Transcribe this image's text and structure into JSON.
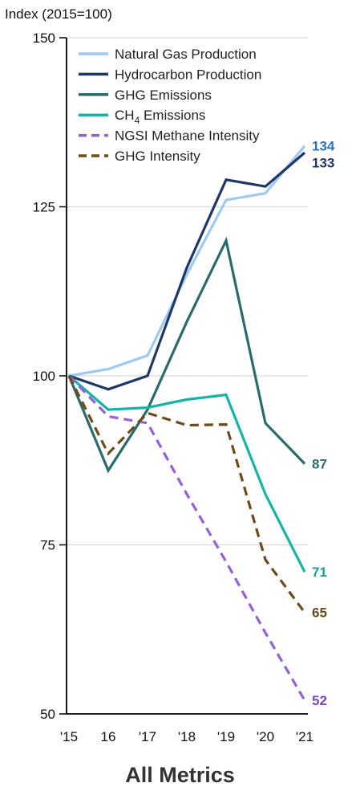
{
  "chart_data": {
    "type": "line",
    "title": "All Metrics",
    "ylabel": "Index (2015=100)",
    "xlabel": "",
    "x": [
      "'15",
      "16",
      "'17",
      "'18",
      "'19",
      "'20",
      "'21"
    ],
    "ylim": [
      50,
      150
    ],
    "yticks": [
      50,
      75,
      100,
      125,
      150
    ],
    "grid": true,
    "legend": "top-left",
    "series": [
      {
        "name": "Natural Gas Production",
        "color": "#9DC9F2",
        "dash": "solid",
        "values": [
          100,
          101,
          103,
          115,
          126,
          127,
          134
        ],
        "end_label": "134",
        "end_label_color": "#2B72C6"
      },
      {
        "name": "Hydrocarbon Production",
        "color": "#1F3766",
        "dash": "solid",
        "values": [
          100,
          98,
          100,
          116,
          129,
          128,
          133
        ],
        "end_label": "133",
        "end_label_color": "#1F3766"
      },
      {
        "name": "GHG Emissions",
        "color": "#2A6B6B",
        "dash": "solid",
        "values": [
          100,
          86,
          95,
          108,
          120,
          93,
          87
        ],
        "end_label": "87",
        "end_label_color": "#2A6B6B"
      },
      {
        "name": "CH₄ Emissions",
        "color": "#16B3A6",
        "dash": "solid",
        "values": [
          100,
          95,
          95.3,
          96.5,
          97.2,
          82.5,
          71
        ],
        "end_label": "71",
        "end_label_color": "#16A09A"
      },
      {
        "name": "NGSI Methane Intensity",
        "color": "#9461D8",
        "dash": "dashed",
        "values": [
          100,
          94,
          93,
          82.5,
          72.5,
          62,
          52
        ],
        "end_label": "52",
        "end_label_color": "#7A45C8"
      },
      {
        "name": "GHG Intensity",
        "color": "#6B4A1C",
        "dash": "dashed",
        "values": [
          100,
          88.5,
          94.5,
          92.7,
          92.8,
          72.8,
          65
        ],
        "end_label": "65",
        "end_label_color": "#6B4A1C"
      }
    ]
  }
}
